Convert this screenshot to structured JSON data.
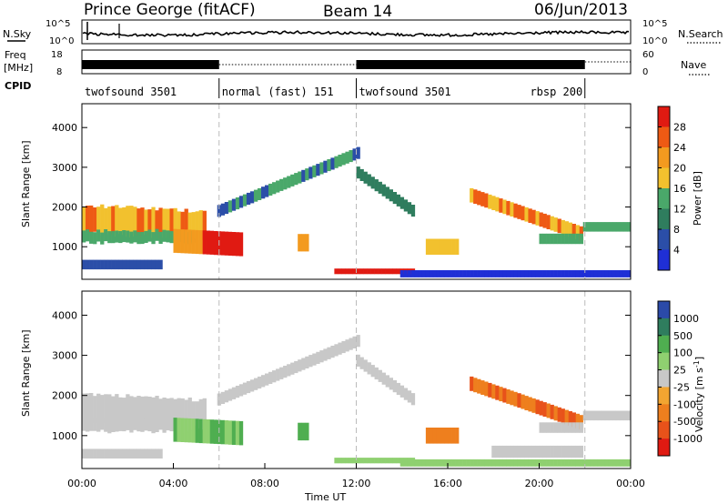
{
  "header": {
    "station": "Prince George (fitACF)",
    "beam": "Beam 14",
    "date": "06/Jun/2013"
  },
  "noise_panel": {
    "left_label": "N.Sky",
    "right_label": "N.Search",
    "ticks_left": [
      "10^5",
      "10^0"
    ],
    "ticks_right": [
      "10^5",
      "10^0"
    ]
  },
  "freq_panel": {
    "left_label_top": "Freq",
    "left_label_unit": "[MHz]",
    "ticks_left": [
      "18",
      "8"
    ],
    "right_label": "Nave",
    "ticks_right": [
      "60",
      "0"
    ]
  },
  "cpid_panel": {
    "label": "CPID",
    "segments": [
      {
        "text": "twofsound 3501",
        "start": 0
      },
      {
        "text": "normal (fast) 151",
        "start": 6
      },
      {
        "text": "twofsound 3501",
        "start": 12
      },
      {
        "text": "rbsp 200",
        "start": 22
      }
    ]
  },
  "colors": {
    "power_scale": [
      "#1f2fd6",
      "#2b4ea8",
      "#2f7d5e",
      "#4aa86a",
      "#f2c12e",
      "#f39a1f",
      "#ee5a14",
      "#e01a12"
    ],
    "velocity_scale": [
      "#2b4aa8",
      "#2f7d5e",
      "#4fae50",
      "#8fd070",
      "#c8c8c8",
      "#f2a531",
      "#ee7f1e",
      "#e8521a",
      "#e01a12"
    ]
  },
  "chart_data": [
    {
      "type": "heatmap",
      "panel": "power",
      "xlabel": "",
      "ylabel": "Slant Range [km]",
      "xlim": [
        0,
        24
      ],
      "ylim": [
        180,
        4600
      ],
      "yticks": [
        "1000",
        "2000",
        "3000",
        "4000"
      ],
      "colorbar": {
        "label": "Power [dB]",
        "ticks": [
          "4",
          "8",
          "12",
          "16",
          "20",
          "24",
          "28"
        ]
      },
      "features": [
        {
          "t0": 0.0,
          "t1": 5.5,
          "r0": 1350,
          "r1": 2000,
          "level": "mid-high"
        },
        {
          "t0": 5.5,
          "t1": 7.0,
          "r0": 800,
          "r1": 1600,
          "level": "high"
        },
        {
          "t0": 7.0,
          "t1": 12.2,
          "r0": 1800,
          "r1": 3400,
          "level": "low-mid",
          "shape": "rising arc"
        },
        {
          "t0": 11.0,
          "t1": 14.5,
          "r0": 300,
          "r1": 500,
          "level": "high"
        },
        {
          "t0": 17.0,
          "t1": 22.0,
          "r0": 1300,
          "r1": 2200,
          "level": "mid-high",
          "shape": "descending"
        },
        {
          "t0": 22.0,
          "t1": 24.0,
          "r0": 1350,
          "r1": 1600,
          "level": "mid"
        }
      ]
    },
    {
      "type": "heatmap",
      "panel": "velocity",
      "xlabel": "Time UT",
      "ylabel": "Slant Range [km]",
      "xlim": [
        0,
        24
      ],
      "ylim": [
        180,
        4600
      ],
      "xticks": [
        "00:00",
        "04:00",
        "08:00",
        "12:00",
        "16:00",
        "20:00",
        "00:00"
      ],
      "yticks": [
        "1000",
        "2000",
        "3000",
        "4000"
      ],
      "colorbar": {
        "label_main": "Velocity",
        "label_unit": "[m s",
        "label_sup": "-1",
        "label_close": "]",
        "ticks": [
          "1000",
          "500",
          "100",
          "25",
          "-25",
          "-100",
          "-500",
          "-1000"
        ]
      },
      "features": [
        {
          "t0": 0.0,
          "t1": 6.0,
          "r0": 1300,
          "r1": 2200,
          "level": "-25..25"
        },
        {
          "t0": 4.0,
          "t1": 7.0,
          "r0": 700,
          "r1": 1500,
          "level": "25..500"
        },
        {
          "t0": 7.0,
          "t1": 12.2,
          "r0": 1800,
          "r1": 3400,
          "level": "-25..25",
          "shape": "rising arc"
        },
        {
          "t0": 12.0,
          "t1": 24.0,
          "r0": 200,
          "r1": 450,
          "level": "25..100"
        },
        {
          "t0": 17.0,
          "t1": 22.0,
          "r0": 1300,
          "r1": 2600,
          "level": "-500..-100",
          "shape": "descending"
        }
      ]
    }
  ]
}
